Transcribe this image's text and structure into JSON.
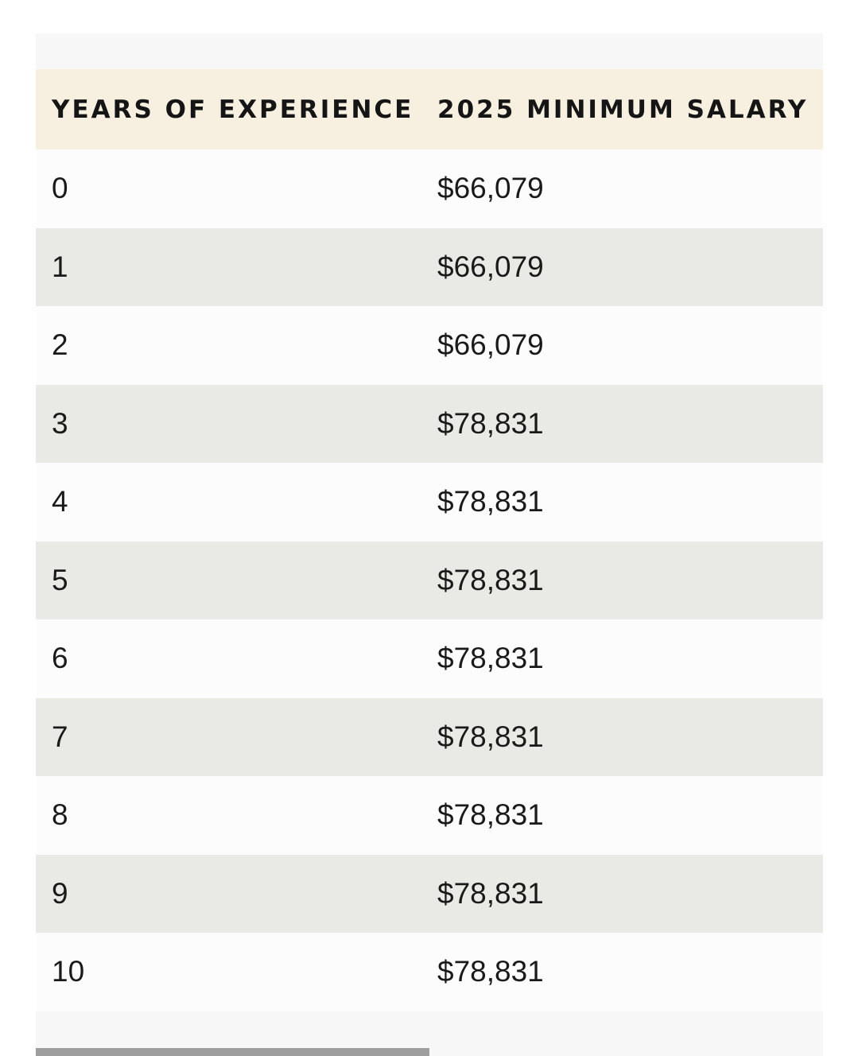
{
  "table": {
    "headers": [
      "YEARS OF EXPERIENCE",
      "2025 MINIMUM SALARY"
    ],
    "rows": [
      {
        "years": "0",
        "salary": "$66,079"
      },
      {
        "years": "1",
        "salary": "$66,079"
      },
      {
        "years": "2",
        "salary": "$66,079"
      },
      {
        "years": "3",
        "salary": "$78,831"
      },
      {
        "years": "4",
        "salary": "$78,831"
      },
      {
        "years": "5",
        "salary": "$78,831"
      },
      {
        "years": "6",
        "salary": "$78,831"
      },
      {
        "years": "7",
        "salary": "$78,831"
      },
      {
        "years": "8",
        "salary": "$78,831"
      },
      {
        "years": "9",
        "salary": "$78,831"
      },
      {
        "years": "10",
        "salary": "$78,831"
      }
    ]
  },
  "colors": {
    "header_bg": "#f7efe0",
    "row_odd": "#fcfcfc",
    "row_even": "#e9e9e5",
    "scrollbar_thumb": "#9e9e9e"
  },
  "scroll": {
    "horizontal_thumb_fraction": 0.5,
    "horizontal_position_fraction": 0
  }
}
